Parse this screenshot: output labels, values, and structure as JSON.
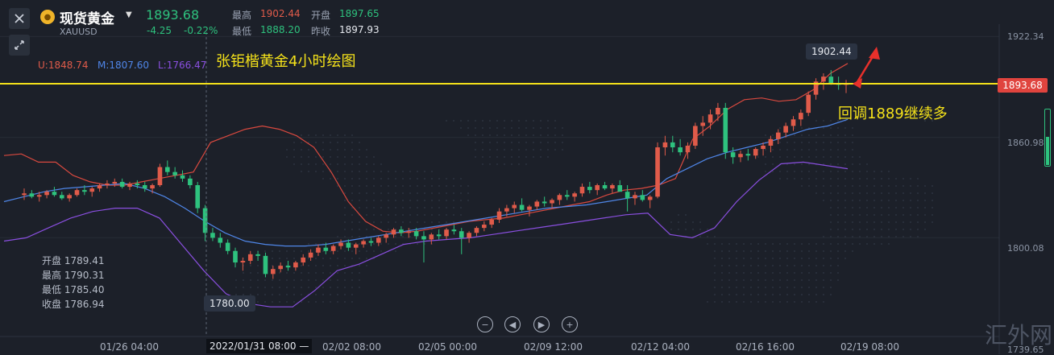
{
  "header": {
    "instrument": "现货黄金",
    "symbol": "XAUUSD",
    "last_price": "1893.68",
    "change": "-4.25",
    "change_pct": "-0.22%",
    "high_label": "最高",
    "high_value": "1902.44",
    "open_label": "开盘",
    "open_value": "1897.65",
    "low_label": "最低",
    "low_value": "1888.20",
    "prev_close_label": "昨收",
    "prev_close_value": "1897.93",
    "close_icon": "close-icon",
    "collapse_icon": "collapse-arrows-icon"
  },
  "bands": {
    "upper": "U:1848.74",
    "middle": "M:1807.60",
    "lower": "L:1766.47"
  },
  "annotations": {
    "title_note": "张钜楷黄金4小时绘图",
    "pullback_note": "回调1889继续多",
    "high_tag": "1902.44",
    "low_tag": "1780.00"
  },
  "crosshair": {
    "ohlc": [
      {
        "label": "开盘",
        "value": "1789.41"
      },
      {
        "label": "最高",
        "value": "1790.31"
      },
      {
        "label": "最低",
        "value": "1785.40"
      },
      {
        "label": "收盘",
        "value": "1786.94"
      }
    ],
    "time_label": "2022/01/31 08:00 —"
  },
  "controls": {
    "zoom_out": "−",
    "prev": "◀",
    "next": "▶",
    "zoom_in": "+"
  },
  "watermark": "汇外网",
  "colors": {
    "up": "#e05b4a",
    "down": "#2ec27e",
    "upper_band": "#d9493f",
    "middle_band": "#4f86e8",
    "lower_band": "#8a4fe0",
    "price_line": "#f5e21a",
    "annotation": "#f5e21a"
  },
  "chart_data": {
    "type": "candlestick",
    "title": "张钜楷黄金4小时绘图",
    "ylim": [
      1740,
      1925
    ],
    "y_ticks": [
      "1922.34",
      "1860.98",
      "1800.08",
      "1739.65"
    ],
    "current_price": "1893.68",
    "x_ticks": [
      "01/26 04:00",
      "2022/01/31 08:00",
      "02/02 08:00",
      "02/05 00:00",
      "02/09 12:00",
      "02/12 04:00",
      "02/16 16:00",
      "02/19 08:00"
    ],
    "ohlc_series": [
      [
        1826,
        1830,
        1823,
        1827
      ],
      [
        1827,
        1829,
        1824,
        1825
      ],
      [
        1825,
        1828,
        1822,
        1826
      ],
      [
        1826,
        1829,
        1824,
        1828
      ],
      [
        1828,
        1831,
        1825,
        1826
      ],
      [
        1826,
        1828,
        1823,
        1824
      ],
      [
        1824,
        1827,
        1822,
        1826
      ],
      [
        1826,
        1830,
        1825,
        1829
      ],
      [
        1829,
        1832,
        1826,
        1828
      ],
      [
        1828,
        1831,
        1825,
        1830
      ],
      [
        1830,
        1833,
        1828,
        1832
      ],
      [
        1832,
        1835,
        1830,
        1833
      ],
      [
        1833,
        1836,
        1831,
        1834
      ],
      [
        1834,
        1836,
        1830,
        1831
      ],
      [
        1831,
        1834,
        1829,
        1833
      ],
      [
        1833,
        1835,
        1830,
        1832
      ],
      [
        1832,
        1834,
        1828,
        1830
      ],
      [
        1830,
        1833,
        1827,
        1832
      ],
      [
        1832,
        1845,
        1831,
        1843
      ],
      [
        1843,
        1847,
        1838,
        1840
      ],
      [
        1840,
        1843,
        1836,
        1838
      ],
      [
        1838,
        1841,
        1834,
        1836
      ],
      [
        1836,
        1838,
        1830,
        1832
      ],
      [
        1832,
        1834,
        1815,
        1818
      ],
      [
        1818,
        1820,
        1798,
        1803
      ],
      [
        1803,
        1806,
        1798,
        1800
      ],
      [
        1800,
        1803,
        1794,
        1797
      ],
      [
        1797,
        1799,
        1790,
        1792
      ],
      [
        1792,
        1794,
        1782,
        1785
      ],
      [
        1785,
        1788,
        1780,
        1786
      ],
      [
        1786,
        1792,
        1784,
        1790
      ],
      [
        1790,
        1792,
        1786,
        1789
      ],
      [
        1789,
        1791,
        1776,
        1778
      ],
      [
        1778,
        1783,
        1775,
        1781
      ],
      [
        1781,
        1785,
        1779,
        1783
      ],
      [
        1783,
        1786,
        1780,
        1782
      ],
      [
        1782,
        1786,
        1780,
        1785
      ],
      [
        1785,
        1790,
        1783,
        1788
      ],
      [
        1788,
        1793,
        1786,
        1791
      ],
      [
        1791,
        1796,
        1789,
        1794
      ],
      [
        1794,
        1797,
        1790,
        1792
      ],
      [
        1792,
        1796,
        1790,
        1795
      ],
      [
        1795,
        1799,
        1793,
        1797
      ],
      [
        1797,
        1799,
        1792,
        1794
      ],
      [
        1794,
        1797,
        1790,
        1796
      ],
      [
        1796,
        1799,
        1794,
        1798
      ],
      [
        1798,
        1800,
        1795,
        1797
      ],
      [
        1797,
        1801,
        1795,
        1800
      ],
      [
        1800,
        1803,
        1797,
        1802
      ],
      [
        1802,
        1806,
        1800,
        1805
      ],
      [
        1805,
        1807,
        1801,
        1803
      ],
      [
        1803,
        1806,
        1800,
        1804
      ],
      [
        1804,
        1806,
        1799,
        1801
      ],
      [
        1801,
        1804,
        1785,
        1799
      ],
      [
        1799,
        1803,
        1796,
        1802
      ],
      [
        1802,
        1805,
        1799,
        1801
      ],
      [
        1801,
        1806,
        1799,
        1805
      ],
      [
        1805,
        1808,
        1802,
        1804
      ],
      [
        1804,
        1806,
        1790,
        1800
      ],
      [
        1800,
        1804,
        1797,
        1803
      ],
      [
        1803,
        1807,
        1801,
        1806
      ],
      [
        1806,
        1810,
        1804,
        1808
      ],
      [
        1808,
        1812,
        1806,
        1811
      ],
      [
        1811,
        1818,
        1809,
        1816
      ],
      [
        1816,
        1820,
        1813,
        1818
      ],
      [
        1818,
        1822,
        1815,
        1820
      ],
      [
        1820,
        1824,
        1816,
        1817
      ],
      [
        1817,
        1820,
        1813,
        1819
      ],
      [
        1819,
        1823,
        1817,
        1822
      ],
      [
        1822,
        1825,
        1819,
        1821
      ],
      [
        1821,
        1824,
        1818,
        1823
      ],
      [
        1823,
        1827,
        1820,
        1826
      ],
      [
        1826,
        1829,
        1823,
        1825
      ],
      [
        1825,
        1828,
        1822,
        1827
      ],
      [
        1827,
        1833,
        1825,
        1831
      ],
      [
        1831,
        1834,
        1827,
        1829
      ],
      [
        1829,
        1833,
        1826,
        1832
      ],
      [
        1832,
        1834,
        1829,
        1830
      ],
      [
        1830,
        1833,
        1827,
        1832
      ],
      [
        1832,
        1835,
        1829,
        1828
      ],
      [
        1828,
        1832,
        1816,
        1824
      ],
      [
        1824,
        1828,
        1820,
        1826
      ],
      [
        1826,
        1829,
        1822,
        1823
      ],
      [
        1823,
        1826,
        1818,
        1825
      ],
      [
        1825,
        1858,
        1824,
        1855
      ],
      [
        1855,
        1862,
        1850,
        1858
      ],
      [
        1858,
        1862,
        1852,
        1855
      ],
      [
        1855,
        1860,
        1850,
        1852
      ],
      [
        1852,
        1858,
        1848,
        1856
      ],
      [
        1856,
        1870,
        1854,
        1868
      ],
      [
        1868,
        1874,
        1862,
        1870
      ],
      [
        1870,
        1878,
        1866,
        1875
      ],
      [
        1875,
        1882,
        1871,
        1879
      ],
      [
        1879,
        1882,
        1848,
        1852
      ],
      [
        1852,
        1855,
        1845,
        1849
      ],
      [
        1849,
        1853,
        1846,
        1851
      ],
      [
        1851,
        1854,
        1847,
        1850
      ],
      [
        1850,
        1855,
        1848,
        1854
      ],
      [
        1854,
        1858,
        1850,
        1856
      ],
      [
        1856,
        1862,
        1852,
        1860
      ],
      [
        1860,
        1866,
        1857,
        1864
      ],
      [
        1864,
        1870,
        1861,
        1868
      ],
      [
        1868,
        1874,
        1865,
        1872
      ],
      [
        1872,
        1878,
        1868,
        1876
      ],
      [
        1876,
        1889,
        1874,
        1887
      ],
      [
        1887,
        1897,
        1884,
        1895
      ],
      [
        1895,
        1900,
        1890,
        1898
      ],
      [
        1898,
        1902,
        1893,
        1894
      ],
      [
        1894,
        1898,
        1890,
        1893
      ],
      [
        1893,
        1896,
        1888,
        1894
      ]
    ],
    "upper_band": [
      1850,
      1851,
      1846,
      1846,
      1838,
      1834,
      1832,
      1832,
      1834,
      1836,
      1838,
      1840,
      1858,
      1862,
      1866,
      1868,
      1866,
      1862,
      1855,
      1840,
      1822,
      1810,
      1804,
      1803,
      1804,
      1806,
      1808,
      1810,
      1811,
      1812,
      1814,
      1816,
      1818,
      1820,
      1822,
      1826,
      1829,
      1830,
      1832,
      1836,
      1860,
      1868,
      1878,
      1884,
      1885,
      1883,
      1884,
      1890,
      1900,
      1906
    ],
    "middle_band": [
      1822,
      1825,
      1828,
      1830,
      1831,
      1832,
      1833,
      1830,
      1825,
      1818,
      1810,
      1803,
      1798,
      1796,
      1795,
      1795,
      1796,
      1798,
      1800,
      1802,
      1804,
      1806,
      1808,
      1810,
      1812,
      1814,
      1816,
      1818,
      1819,
      1820,
      1822,
      1824,
      1826,
      1836,
      1842,
      1848,
      1852,
      1855,
      1858,
      1862,
      1866,
      1868,
      1872
    ],
    "lower_band": [
      1798,
      1800,
      1806,
      1812,
      1816,
      1818,
      1818,
      1812,
      1796,
      1780,
      1766,
      1760,
      1758,
      1758,
      1768,
      1780,
      1784,
      1790,
      1796,
      1798,
      1799,
      1800,
      1802,
      1804,
      1806,
      1808,
      1810,
      1812,
      1814,
      1815,
      1802,
      1800,
      1806,
      1822,
      1835,
      1845,
      1846,
      1844,
      1842
    ]
  }
}
